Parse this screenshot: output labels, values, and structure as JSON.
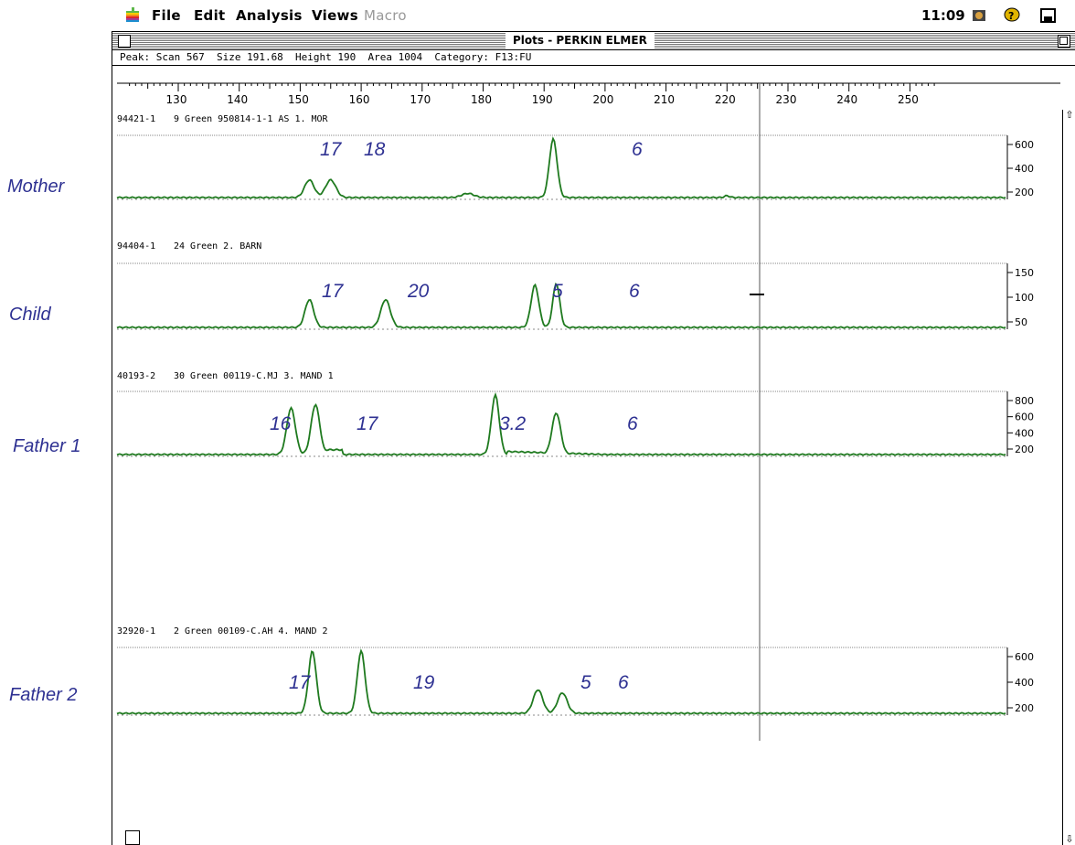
{
  "menubar": {
    "items": [
      "File",
      "Edit",
      "Analysis",
      "Views",
      "Macro"
    ],
    "clock": "11:09",
    "icons": [
      "apple-icon",
      "application-icon",
      "help-balloon-icon",
      "disk-icon"
    ]
  },
  "window": {
    "title": "Plots - PERKIN ELMER",
    "peak_info": "Peak: Scan 567  Size 191.68  Height 190  Area 1004  Category: F13:FU",
    "ruler_ticks": [
      "130",
      "140",
      "150",
      "160",
      "170",
      "180",
      "190",
      "200",
      "210",
      "220",
      "230",
      "240",
      "250"
    ]
  },
  "tracks": [
    {
      "id": "94421-1",
      "info": "9 Green  950814-1-1 AS 1. MOR",
      "sample": "Mother",
      "y_ticks": [
        "600",
        "400",
        "200"
      ],
      "alleles": [
        {
          "label": "17",
          "size": 151.5
        },
        {
          "label": "18",
          "size": 154.5
        },
        {
          "label": "6",
          "size": 191.5
        }
      ]
    },
    {
      "id": "94404-1",
      "info": "24 Green  2. BARN",
      "sample": "Child",
      "y_ticks": [
        "150",
        "100",
        "50"
      ],
      "alleles": [
        {
          "label": "17",
          "size": 151.5
        },
        {
          "label": "20",
          "size": 163.5
        },
        {
          "label": "5",
          "size": 188.5
        },
        {
          "label": "6",
          "size": 191.5
        }
      ]
    },
    {
      "id": "40193-2",
      "info": "30 Green  00119-C.MJ 3. MAND 1",
      "sample": "Father 1",
      "y_ticks": [
        "800",
        "600",
        "400",
        "200"
      ],
      "alleles": [
        {
          "label": "16",
          "size": 148.5
        },
        {
          "label": "17",
          "size": 151.5
        },
        {
          "label": "3.2",
          "size": 182.0
        },
        {
          "label": "6",
          "size": 191.5
        }
      ]
    },
    {
      "id": "32920-1",
      "info": "2 Green  00109-C.AH 4. MAND 2",
      "sample": "Father 2",
      "y_ticks": [
        "600",
        "400",
        "200"
      ],
      "alleles": [
        {
          "label": "17",
          "size": 151.5
        },
        {
          "label": "19",
          "size": 159.5
        },
        {
          "label": "5",
          "size": 188.5
        },
        {
          "label": "6",
          "size": 191.5
        }
      ]
    }
  ],
  "colors": {
    "trace": "#1f7a1f",
    "annotation": "#2e3192"
  }
}
